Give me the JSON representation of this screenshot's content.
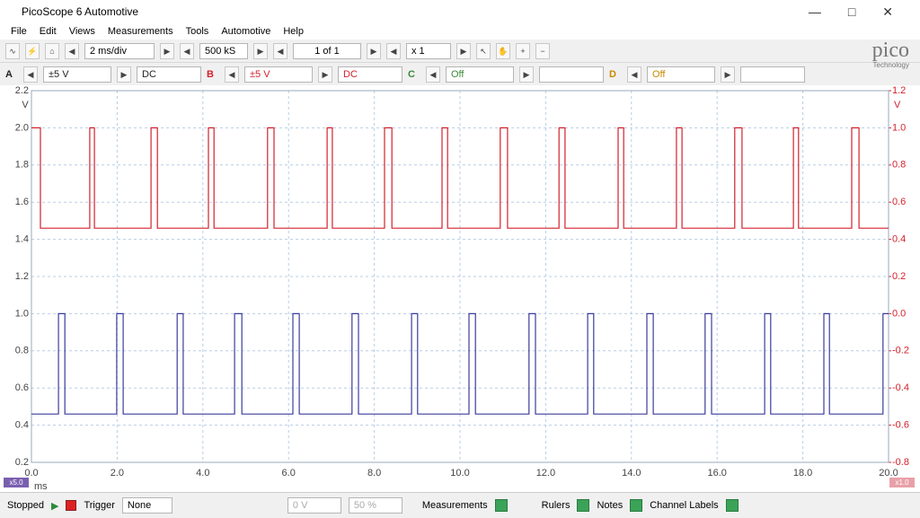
{
  "window": {
    "title": "PicoScope 6 Automotive"
  },
  "menu": {
    "items": [
      "File",
      "Edit",
      "Views",
      "Measurements",
      "Tools",
      "Automotive",
      "Help"
    ]
  },
  "toolbar": {
    "timebase": "2 ms/div",
    "samples": "500 kS",
    "buffer": "1 of 1",
    "zoom": "x 1"
  },
  "channels": [
    {
      "letter": "A",
      "range": "±5 V",
      "coupling": "DC"
    },
    {
      "letter": "B",
      "range": "±5 V",
      "coupling": "DC"
    },
    {
      "letter": "C",
      "range": "Off"
    },
    {
      "letter": "D",
      "range": "Off"
    }
  ],
  "logo": {
    "name": "pico",
    "tagline": "Technology"
  },
  "scope": {
    "x_unit": "ms",
    "y_unit": "V",
    "y2_unit": "V",
    "left_scale": "x5.0",
    "right_scale": "x1.0",
    "xlim": [
      0,
      20
    ],
    "xticks": [
      {
        "value": 0,
        "label": "0.0"
      },
      {
        "value": 2,
        "label": "2.0"
      },
      {
        "value": 4,
        "label": "4.0"
      },
      {
        "value": 6,
        "label": "6.0"
      },
      {
        "value": 8,
        "label": "8.0"
      },
      {
        "value": 10,
        "label": "10.0"
      },
      {
        "value": 12,
        "label": "12.0"
      },
      {
        "value": 14,
        "label": "14.0"
      },
      {
        "value": 16,
        "label": "16.0"
      },
      {
        "value": 18,
        "label": "18.0"
      },
      {
        "value": 20,
        "label": "20.0"
      }
    ],
    "ylim": [
      0.2,
      2.2
    ],
    "yticks": [
      {
        "value": 2.2,
        "label": "2.2"
      },
      {
        "value": 2.0,
        "label": "2.0"
      },
      {
        "value": 1.8,
        "label": "1.8"
      },
      {
        "value": 1.6,
        "label": "1.6"
      },
      {
        "value": 1.4,
        "label": "1.4"
      },
      {
        "value": 1.2,
        "label": "1.2"
      },
      {
        "value": 1.0,
        "label": "1.0"
      },
      {
        "value": 0.8,
        "label": "0.8"
      },
      {
        "value": 0.6,
        "label": "0.6"
      },
      {
        "value": 0.4,
        "label": "0.4"
      },
      {
        "value": 0.2,
        "label": "0.2"
      }
    ],
    "y2lim": [
      -0.8,
      1.2
    ],
    "y2ticks": [
      {
        "value": 1.2,
        "label": "1.2"
      },
      {
        "value": 1.0,
        "label": "1.0"
      },
      {
        "value": 0.8,
        "label": "0.8"
      },
      {
        "value": 0.6,
        "label": "0.6"
      },
      {
        "value": 0.4,
        "label": "0.4"
      },
      {
        "value": 0.2,
        "label": "0.2"
      },
      {
        "value": 0,
        "label": "0.0"
      },
      {
        "value": -0.2,
        "label": "-0.2"
      },
      {
        "value": -0.4,
        "label": "-0.4"
      },
      {
        "value": -0.6,
        "label": "-0.6"
      },
      {
        "value": -0.8,
        "label": "-0.8"
      }
    ],
    "grid": true,
    "series": [
      {
        "color": "#d3212d",
        "axis": "y2",
        "x": [
          0,
          0.21,
          0.21,
          1.36,
          1.36,
          1.47,
          1.47,
          2.79,
          2.79,
          2.94,
          2.94,
          4.13,
          4.13,
          4.26,
          4.26,
          5.51,
          5.51,
          5.66,
          5.66,
          6.9,
          6.9,
          7.02,
          7.02,
          8.24,
          8.24,
          8.41,
          8.41,
          9.58,
          9.58,
          9.71,
          9.71,
          10.94,
          10.94,
          11.11,
          11.11,
          12.31,
          12.31,
          12.45,
          12.45,
          13.69,
          13.69,
          13.82,
          13.82,
          15.05,
          15.05,
          15.18,
          15.18,
          16.41,
          16.41,
          16.58,
          16.58,
          17.78,
          17.78,
          17.9,
          17.9,
          19.14,
          19.14,
          19.31,
          19.31,
          20
        ],
        "values": [
          1,
          1,
          0.46,
          0.46,
          1,
          1,
          0.46,
          0.46,
          1,
          1,
          0.46,
          0.46,
          1,
          1,
          0.46,
          0.46,
          1,
          1,
          0.46,
          0.46,
          1,
          1,
          0.46,
          0.46,
          1,
          1,
          0.46,
          0.46,
          1,
          1,
          0.46,
          0.46,
          1,
          1,
          0.46,
          0.46,
          1,
          1,
          0.46,
          0.46,
          1,
          1,
          0.46,
          0.46,
          1,
          1,
          0.46,
          0.46,
          1,
          1,
          0.46,
          0.46,
          1,
          1,
          0.46,
          0.46,
          1,
          1,
          0.46,
          0.46
        ]
      },
      {
        "color": "#3b3c9c",
        "x": [
          0,
          0.63,
          0.63,
          0.78,
          0.78,
          1.99,
          1.99,
          2.14,
          2.14,
          3.4,
          3.4,
          3.54,
          3.54,
          4.74,
          4.74,
          4.91,
          4.91,
          6.1,
          6.1,
          6.25,
          6.25,
          7.48,
          7.48,
          7.63,
          7.63,
          8.87,
          8.87,
          9.01,
          9.01,
          10.21,
          10.21,
          10.36,
          10.36,
          11.61,
          11.61,
          11.76,
          11.76,
          12.98,
          12.98,
          13.12,
          13.12,
          14.36,
          14.36,
          14.51,
          14.51,
          15.72,
          15.72,
          15.87,
          15.87,
          17.11,
          17.11,
          17.25,
          17.25,
          18.49,
          18.49,
          18.62,
          18.62,
          19.87,
          19.87,
          20
        ],
        "values": [
          0.46,
          0.46,
          1,
          1,
          0.46,
          0.46,
          1,
          1,
          0.46,
          0.46,
          1,
          1,
          0.46,
          0.46,
          1,
          1,
          0.46,
          0.46,
          1,
          1,
          0.46,
          0.46,
          1,
          1,
          0.46,
          0.46,
          1,
          1,
          0.46,
          0.46,
          1,
          1,
          0.46,
          0.46,
          1,
          1,
          0.46,
          0.46,
          1,
          1,
          0.46,
          0.46,
          1,
          1,
          0.46,
          0.46,
          1,
          1,
          0.46,
          0.46,
          1,
          1,
          0.46,
          0.46,
          1,
          1,
          0.46,
          0.46,
          1,
          1
        ]
      }
    ]
  },
  "status": {
    "state": "Stopped",
    "trigger_label": "Trigger",
    "trigger_mode": "None",
    "trigger_level": "0 V",
    "pretrigger": "50 %",
    "measurements": "Measurements",
    "rulers": "Rulers",
    "notes": "Notes",
    "channel_labels": "Channel Labels"
  }
}
